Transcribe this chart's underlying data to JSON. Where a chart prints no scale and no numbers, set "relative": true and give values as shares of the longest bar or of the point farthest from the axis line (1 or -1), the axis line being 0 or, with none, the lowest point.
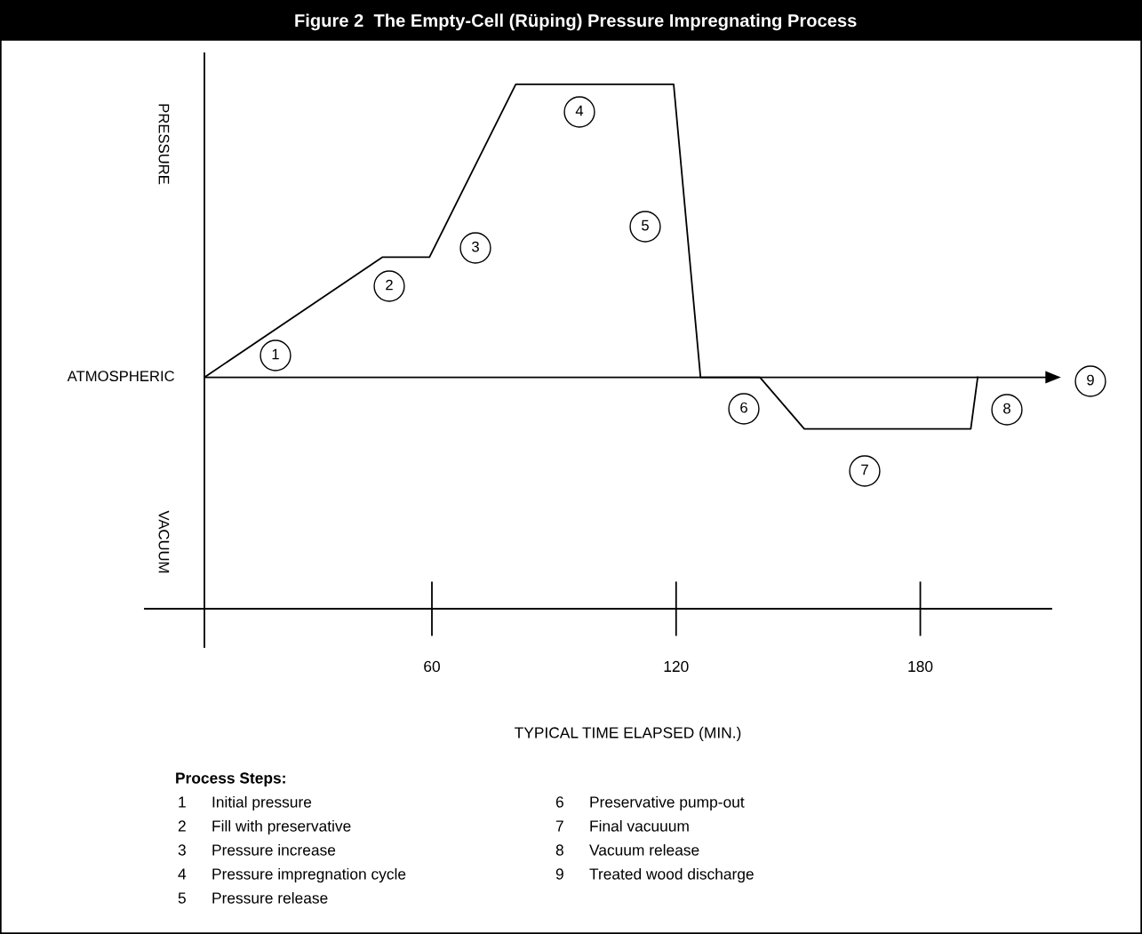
{
  "chart_data": {
    "type": "line",
    "title": "Figure 2  The Empty-Cell (Rüping) Pressure Impregnating Process",
    "xlabel": "TYPICAL TIME ELAPSED (MIN.)",
    "relative": true,
    "x": [
      4.1,
      47.8,
      59.4,
      80.6,
      119.4,
      126,
      140.6,
      151.5,
      192.4,
      194.1
    ],
    "series": [
      {
        "color": "#000000",
        "values": [
          0,
          0.41,
          0.41,
          1,
          1,
          0,
          0,
          -0.176,
          -0.176,
          0
        ]
      }
    ],
    "xlim": [
      4.1,
      212.2
    ],
    "xticks": [
      60,
      120,
      180
    ],
    "ref_lines": [
      {
        "axis": "y",
        "value": 0,
        "label": "ATMOSPHERIC",
        "color": "#000000"
      }
    ],
    "marker": "none",
    "line_style": "solid",
    "grid": false,
    "legend": false,
    "annotations": [
      "PRESSURE",
      "VACUUM",
      "1",
      "2",
      "3",
      "4",
      "5",
      "6",
      "7",
      "8",
      "9",
      "Process Steps:",
      "1 Initial pressure",
      "2 Fill with preservative",
      "3 Pressure increase",
      "4 Pressure impregnation cycle",
      "5 Pressure release",
      "6 Preservative pump-out",
      "7 Final vacuuum",
      "8 Vacuum release",
      "9 Treated wood discharge"
    ]
  }
}
